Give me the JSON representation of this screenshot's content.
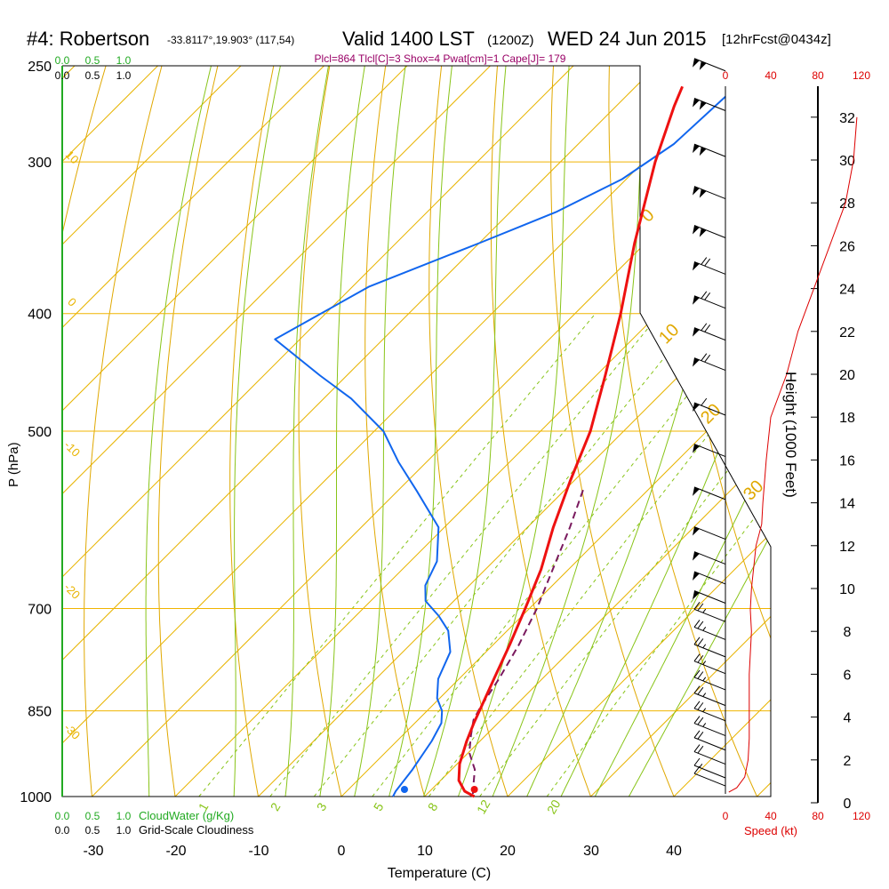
{
  "chart_data": {
    "type": "skew-t sounding",
    "title": {
      "station": "#4: Robertson",
      "coords": "-33.8117°,19.903° (117,54)",
      "valid": "Valid 1400 LST",
      "zulu": "(1200Z)",
      "date": "WED 24 Jun 2015",
      "forecast": "[12hrFcst@0434z]"
    },
    "indices_line": "Plcl=864 Tlcl[C]=3 Shox=4 Pwat[cm]=1 Cape[J]= 179",
    "xlabel": "Temperature (C)",
    "ylabel": "P (hPa)",
    "height_label": "Height (1000 Feet)",
    "speed_label": "Speed (kt)",
    "cloudwater_label": "CloudWater (g/Kg)",
    "cloudiness_label": "Grid-Scale Cloudiness",
    "temp_ticks": [
      -30,
      -20,
      -10,
      0,
      10,
      20,
      30,
      40
    ],
    "pressure_levels": [
      1000,
      850,
      700,
      500,
      400,
      300,
      250
    ],
    "height_ticks": [
      0,
      2,
      4,
      6,
      8,
      10,
      12,
      14,
      16,
      18,
      20,
      22,
      24,
      26,
      28,
      30,
      32
    ],
    "speed_ticks": [
      "0",
      "40",
      "80",
      "120"
    ],
    "cloud_ticks": [
      "0.0",
      "0.5",
      "1.0"
    ],
    "isotherm_labels_left": [
      "10",
      "0",
      "-10",
      "-20",
      "-30"
    ],
    "dry_adiabat_labels_right": [
      "0",
      "10",
      "20",
      "30"
    ],
    "mixing_ratio_labels": [
      "1",
      "2",
      "3",
      "5",
      "8",
      "12",
      "20"
    ],
    "temperature_profile": [
      {
        "p": 1000,
        "t": 16.0
      },
      {
        "p": 990,
        "t": 14.2
      },
      {
        "p": 970,
        "t": 12.2
      },
      {
        "p": 940,
        "t": 10.3
      },
      {
        "p": 900,
        "t": 8.4
      },
      {
        "p": 870,
        "t": 7.1
      },
      {
        "p": 850,
        "t": 6.3
      },
      {
        "p": 800,
        "t": 4.2
      },
      {
        "p": 750,
        "t": 2.0
      },
      {
        "p": 700,
        "t": -0.5
      },
      {
        "p": 650,
        "t": -3.3
      },
      {
        "p": 600,
        "t": -6.9
      },
      {
        "p": 550,
        "t": -10.4
      },
      {
        "p": 500,
        "t": -14.0
      },
      {
        "p": 450,
        "t": -18.9
      },
      {
        "p": 400,
        "t": -24.5
      },
      {
        "p": 350,
        "t": -31.3
      },
      {
        "p": 300,
        "t": -38.6
      },
      {
        "p": 270,
        "t": -43.0
      },
      {
        "p": 260,
        "t": -44.4
      }
    ],
    "dewpoint_profile": [
      {
        "p": 1000,
        "t": 6.2
      },
      {
        "p": 990,
        "t": 5.9
      },
      {
        "p": 950,
        "t": 5.3
      },
      {
        "p": 900,
        "t": 4.2
      },
      {
        "p": 870,
        "t": 3.2
      },
      {
        "p": 850,
        "t": 1.8
      },
      {
        "p": 830,
        "t": -0.3
      },
      {
        "p": 800,
        "t": -2.5
      },
      {
        "p": 760,
        "t": -4.3
      },
      {
        "p": 730,
        "t": -7.1
      },
      {
        "p": 710,
        "t": -10.0
      },
      {
        "p": 690,
        "t": -13.4
      },
      {
        "p": 670,
        "t": -15.3
      },
      {
        "p": 640,
        "t": -16.8
      },
      {
        "p": 600,
        "t": -20.7
      },
      {
        "p": 560,
        "t": -27.7
      },
      {
        "p": 530,
        "t": -33.4
      },
      {
        "p": 500,
        "t": -38.9
      },
      {
        "p": 470,
        "t": -46.7
      },
      {
        "p": 450,
        "t": -53.2
      },
      {
        "p": 420,
        "t": -63.0
      },
      {
        "p": 380,
        "t": -58.0
      },
      {
        "p": 350,
        "t": -50.0
      },
      {
        "p": 330,
        "t": -44.5
      },
      {
        "p": 310,
        "t": -40.5
      },
      {
        "p": 290,
        "t": -38.5
      },
      {
        "p": 265,
        "t": -38.0
      }
    ],
    "parcel_profile": [
      {
        "p": 995,
        "t": 15.5
      },
      {
        "p": 975,
        "t": 14.3
      },
      {
        "p": 950,
        "t": 12.8
      },
      {
        "p": 920,
        "t": 10.1
      },
      {
        "p": 890,
        "t": 8.2
      },
      {
        "p": 865,
        "t": 6.7
      },
      {
        "p": 845,
        "t": 6.0
      },
      {
        "p": 800,
        "t": 4.8
      },
      {
        "p": 750,
        "t": 3.1
      },
      {
        "p": 700,
        "t": 0.9
      },
      {
        "p": 650,
        "t": -1.9
      },
      {
        "p": 600,
        "t": -4.9
      },
      {
        "p": 555,
        "t": -8.1
      }
    ],
    "surface_temperature_c": 16.0,
    "surface_dewpoint_c": 6.2,
    "wind_speed_profile": [
      {
        "z": 0.5,
        "kt": 3
      },
      {
        "z": 0.7,
        "kt": 10
      },
      {
        "z": 1.2,
        "kt": 17
      },
      {
        "z": 2.0,
        "kt": 20
      },
      {
        "z": 3.0,
        "kt": 21
      },
      {
        "z": 6.0,
        "kt": 21
      },
      {
        "z": 8.0,
        "kt": 23
      },
      {
        "z": 9.0,
        "kt": 22
      },
      {
        "z": 10.0,
        "kt": 23
      },
      {
        "z": 12.0,
        "kt": 27
      },
      {
        "z": 13.0,
        "kt": 32
      },
      {
        "z": 14.0,
        "kt": 33
      },
      {
        "z": 16.0,
        "kt": 36
      },
      {
        "z": 18.0,
        "kt": 40
      },
      {
        "z": 20.0,
        "kt": 54
      },
      {
        "z": 22.0,
        "kt": 64
      },
      {
        "z": 24.0,
        "kt": 78
      },
      {
        "z": 26.0,
        "kt": 92
      },
      {
        "z": 28.0,
        "kt": 106
      },
      {
        "z": 30.0,
        "kt": 113
      },
      {
        "z": 32.0,
        "kt": 116
      }
    ],
    "wind_barbs": [
      {
        "p": 255,
        "kt": 100
      },
      {
        "p": 275,
        "kt": 100
      },
      {
        "p": 300,
        "kt": 100
      },
      {
        "p": 325,
        "kt": 100
      },
      {
        "p": 350,
        "kt": 100
      },
      {
        "p": 375,
        "kt": 70
      },
      {
        "p": 400,
        "kt": 70
      },
      {
        "p": 425,
        "kt": 70
      },
      {
        "p": 450,
        "kt": 70
      },
      {
        "p": 490,
        "kt": 60
      },
      {
        "p": 530,
        "kt": 50
      },
      {
        "p": 575,
        "kt": 50
      },
      {
        "p": 620,
        "kt": 50
      },
      {
        "p": 650,
        "kt": 50
      },
      {
        "p": 675,
        "kt": 50
      },
      {
        "p": 700,
        "kt": 50
      },
      {
        "p": 725,
        "kt": 25
      },
      {
        "p": 750,
        "kt": 25
      },
      {
        "p": 775,
        "kt": 25
      },
      {
        "p": 800,
        "kt": 25
      },
      {
        "p": 825,
        "kt": 25
      },
      {
        "p": 850,
        "kt": 25
      },
      {
        "p": 875,
        "kt": 25
      },
      {
        "p": 900,
        "kt": 25
      },
      {
        "p": 925,
        "kt": 20
      },
      {
        "p": 950,
        "kt": 20
      },
      {
        "p": 975,
        "kt": 15
      },
      {
        "p": 990,
        "kt": 10
      }
    ]
  },
  "colors": {
    "temperature": "#ee1111",
    "dewpoint": "#1166ee",
    "parcel": "#7a1a5e",
    "isobar": "#f0b400",
    "isotherm": "#e8b400",
    "dry_adiabat": "#e0a800",
    "moist_adiabat": "#88c418",
    "mixing_ratio": "#88c418",
    "cloud_scale": "#22aa22",
    "speed_axis": "#dd0000"
  }
}
